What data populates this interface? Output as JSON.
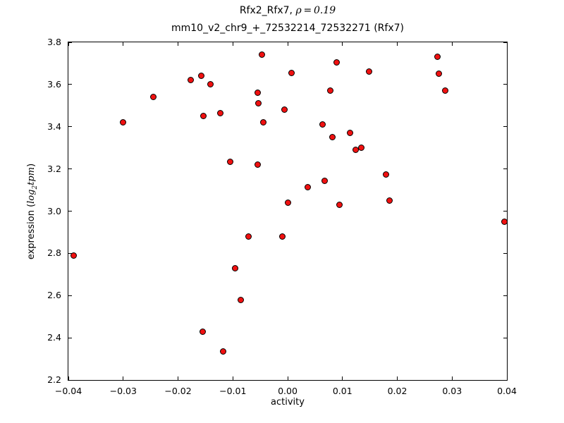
{
  "title": {
    "line1_prefix": "Rfx2_Rfx7, ",
    "line1_math": "ρ = 0.19",
    "line2": "mm10_v2_chr9_+_72532214_72532271 (Rfx7)"
  },
  "axes": {
    "xlabel": "activity",
    "ylabel_prefix": "expression (",
    "ylabel_math_main": "log",
    "ylabel_math_sub": "2",
    "ylabel_math_tail": "tpm",
    "ylabel_suffix": ")"
  },
  "chart_data": {
    "type": "scatter",
    "title": "Rfx2_Rfx7, ρ=0.19 — mm10_v2_chr9_+_72532214_72532271 (Rfx7)",
    "xlabel": "activity",
    "ylabel": "expression (log2 tpm)",
    "marker_color": "#f01010",
    "marker_edge_color": "#000000",
    "xlim": [
      -0.04,
      0.04
    ],
    "ylim": [
      2.2,
      3.8
    ],
    "grid": false,
    "legend": "none",
    "x_ticks": {
      "values": [
        -0.04,
        -0.03,
        -0.02,
        -0.01,
        0.0,
        0.01,
        0.02,
        0.03,
        0.04
      ],
      "labels": [
        "−0.04",
        "−0.03",
        "−0.02",
        "−0.01",
        "0.00",
        "0.01",
        "0.02",
        "0.03",
        "0.04"
      ]
    },
    "y_ticks": {
      "values": [
        2.2,
        2.4,
        2.6,
        2.8,
        3.0,
        3.2,
        3.4,
        3.6,
        3.8
      ],
      "labels": [
        "2.2",
        "2.4",
        "2.6",
        "2.8",
        "3.0",
        "3.2",
        "3.4",
        "3.6",
        "3.8"
      ]
    },
    "points": [
      [
        -0.039,
        2.79
      ],
      [
        -0.03,
        3.42
      ],
      [
        -0.0245,
        3.54
      ],
      [
        -0.0177,
        3.62
      ],
      [
        -0.0158,
        3.64
      ],
      [
        -0.0154,
        3.45
      ],
      [
        -0.0155,
        2.43
      ],
      [
        -0.0141,
        3.6
      ],
      [
        -0.0123,
        3.465
      ],
      [
        -0.0118,
        2.335
      ],
      [
        -0.0105,
        3.235
      ],
      [
        -0.0096,
        2.73
      ],
      [
        -0.0085,
        2.58
      ],
      [
        -0.0072,
        2.88
      ],
      [
        -0.0055,
        3.56
      ],
      [
        -0.0053,
        3.51
      ],
      [
        -0.0055,
        3.22
      ],
      [
        -0.0047,
        3.74
      ],
      [
        -0.0045,
        3.42
      ],
      [
        -0.001,
        2.88
      ],
      [
        -0.0006,
        3.48
      ],
      [
        0.0,
        3.04
      ],
      [
        0.0007,
        3.655
      ],
      [
        0.0037,
        3.115
      ],
      [
        0.0064,
        3.41
      ],
      [
        0.0067,
        3.145
      ],
      [
        0.0078,
        3.57
      ],
      [
        0.0082,
        3.35
      ],
      [
        0.009,
        3.705
      ],
      [
        0.0094,
        3.03
      ],
      [
        0.0114,
        3.37
      ],
      [
        0.0124,
        3.29
      ],
      [
        0.0135,
        3.3
      ],
      [
        0.0149,
        3.66
      ],
      [
        0.0179,
        3.175
      ],
      [
        0.0186,
        3.05
      ],
      [
        0.0273,
        3.73
      ],
      [
        0.0276,
        3.65
      ],
      [
        0.0287,
        3.57
      ],
      [
        0.0395,
        2.95
      ]
    ]
  }
}
